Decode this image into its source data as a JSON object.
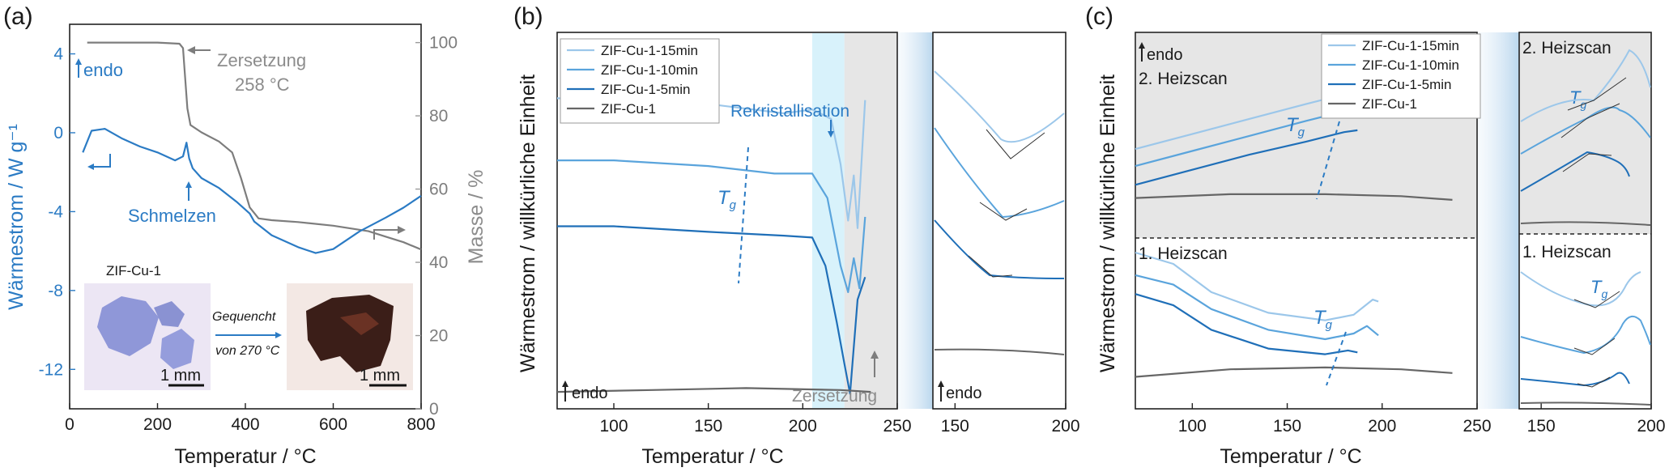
{
  "colors": {
    "dsc_blue": "#2b7bc4",
    "tga_grey": "#7d7d7d",
    "axis_grey": "#9a9a9a",
    "c15": "#9cc7ea",
    "c10": "#5aa4dc",
    "c5": "#1f6fb8",
    "c0": "#666666",
    "shade": "#e6e6e6",
    "cyan_band": "#d8f2fb"
  },
  "panel_a": {
    "label": "(a)",
    "xlabel": "Temperatur / °C",
    "ylabel_left": "Wärmestrom / W g⁻¹",
    "ylabel_right": "Masse / %",
    "x_ticks": [
      "0",
      "200",
      "400",
      "600",
      "800"
    ],
    "y_left_ticks": [
      "4",
      "0",
      "-4",
      "-8",
      "-12"
    ],
    "y_right_ticks": [
      "100",
      "80",
      "60",
      "40",
      "20",
      "0"
    ],
    "annotations": {
      "endo": "endo",
      "zersetzung": "Zersetzung",
      "zersetzung_temp": "258 °C",
      "schmelzen": "Schmelzen",
      "sample": "ZIF-Cu-1",
      "gequencht": "Gequencht",
      "von": "von 270 °C",
      "scale1": "1 mm",
      "scale2": "1 mm"
    }
  },
  "panel_b": {
    "label": "(b)",
    "xlabel": "Temperatur / °C",
    "ylabel": "Wärmestrom / willkürliche Einheit",
    "x_ticks": [
      "100",
      "150",
      "200",
      "250"
    ],
    "zoom_x_ticks": [
      "150",
      "200"
    ],
    "legend": [
      "ZIF-Cu-1-15min",
      "ZIF-Cu-1-10min",
      "ZIF-Cu-1-5min",
      "ZIF-Cu-1"
    ],
    "annotations": {
      "rekristallisation": "Rekristallisation",
      "tg": "T",
      "tg_sub": "g",
      "endo": "endo",
      "zersetzung": "Zersetzung",
      "zoom_endo": "endo"
    }
  },
  "panel_c": {
    "label": "(c)",
    "xlabel": "Temperatur / °C",
    "ylabel": "Wärmestrom / willkürliche Einheit",
    "x_ticks": [
      "100",
      "150",
      "200",
      "250"
    ],
    "zoom_x_ticks": [
      "150",
      "200"
    ],
    "legend": [
      "ZIF-Cu-1-15min",
      "ZIF-Cu-1-10min",
      "ZIF-Cu-1-5min",
      "ZIF-Cu-1"
    ],
    "annotations": {
      "endo": "endo",
      "heizscan2": "2. Heizscan",
      "heizscan1": "1. Heizscan",
      "tg": "T",
      "tg_sub": "g",
      "zoom_heizscan2": "2. Heizscan",
      "zoom_heizscan1": "1. Heizscan"
    }
  },
  "chart_data": [
    {
      "type": "line",
      "panel": "a",
      "xlabel": "Temperatur / °C",
      "ylabel": "Wärmestrom / W g⁻¹",
      "xlim": [
        0,
        800
      ],
      "ylim": [
        -14,
        5.5
      ],
      "ylim_right": [
        0,
        105
      ],
      "series": [
        {
          "axis": "left",
          "x": [
            30,
            50,
            80,
            120,
            160,
            200,
            240,
            258,
            266,
            272,
            280,
            300,
            340,
            380,
            410,
            420,
            460,
            520,
            560,
            600,
            660,
            720,
            760,
            800
          ],
          "y": [
            -1.0,
            0.1,
            0.2,
            -0.3,
            -0.7,
            -1.0,
            -1.4,
            -1.2,
            -0.5,
            -1.3,
            -1.8,
            -2.3,
            -2.8,
            -3.5,
            -4.1,
            -4.5,
            -5.2,
            -5.8,
            -6.1,
            -5.9,
            -5.0,
            -4.3,
            -3.8,
            -3.2
          ]
        },
        {
          "axis": "right",
          "x": [
            40,
            100,
            200,
            250,
            258,
            262,
            268,
            275,
            300,
            340,
            370,
            390,
            410,
            430,
            460,
            520,
            600,
            680,
            720,
            760,
            800
          ],
          "y": [
            100,
            100,
            100,
            99.7,
            98.5,
            92,
            82,
            77.5,
            75.5,
            73,
            70,
            63,
            55,
            52,
            51.5,
            51,
            50,
            48.5,
            47,
            45.5,
            43.5
          ]
        }
      ]
    },
    {
      "type": "line",
      "panel": "b",
      "xlabel": "Temperatur / °C",
      "ylabel": "Wärmestrom / willkürliche Einheit",
      "xlim": [
        70,
        250
      ],
      "ylim": [
        0,
        10
      ],
      "series": [
        {
          "name": "ZIF-Cu-1-15min",
          "x": [
            70,
            100,
            150,
            190,
            205,
            215,
            220,
            224,
            227,
            229,
            231,
            233
          ],
          "y": [
            8.25,
            8.2,
            8.1,
            7.85,
            7.95,
            7.7,
            6.5,
            5.0,
            6.2,
            4.8,
            6.5,
            8.2
          ]
        },
        {
          "name": "ZIF-Cu-1-10min",
          "x": [
            70,
            100,
            150,
            185,
            205,
            213,
            220,
            224,
            227,
            230,
            233
          ],
          "y": [
            6.6,
            6.6,
            6.45,
            6.25,
            6.25,
            5.6,
            3.8,
            3.1,
            4.0,
            3.2,
            5.1
          ]
        },
        {
          "name": "ZIF-Cu-1-5min",
          "x": [
            70,
            100,
            150,
            190,
            205,
            212,
            218,
            222,
            225,
            229,
            233
          ],
          "y": [
            4.85,
            4.85,
            4.7,
            4.6,
            4.55,
            3.8,
            2.3,
            1.2,
            0.4,
            2.9,
            3.5
          ]
        },
        {
          "name": "ZIF-Cu-1",
          "x": [
            70,
            120,
            170,
            220,
            236
          ],
          "y": [
            0.45,
            0.5,
            0.55,
            0.5,
            0.45
          ]
        }
      ]
    },
    {
      "type": "line",
      "panel": "c",
      "xlabel": "Temperatur / °C",
      "ylabel": "Wärmestrom / willkürliche Einheit",
      "xlim": [
        70,
        250
      ],
      "ylim": [
        0,
        10
      ],
      "series": [
        {
          "name": "ZIF-Cu-1-15min",
          "x": [
            70,
            100,
            130,
            160,
            180,
            190,
            198
          ],
          "y": [
            6.9,
            7.3,
            7.7,
            8.1,
            8.35,
            8.55,
            8.45
          ]
        },
        {
          "name": "ZIF-Cu-1-10min",
          "x": [
            70,
            100,
            130,
            160,
            180,
            190,
            198
          ],
          "y": [
            6.45,
            6.85,
            7.25,
            7.65,
            7.9,
            8.05,
            7.85
          ]
        },
        {
          "name": "ZIF-Cu-1-5min",
          "x": [
            70,
            100,
            130,
            160,
            180,
            187
          ],
          "y": [
            5.95,
            6.35,
            6.75,
            7.1,
            7.35,
            7.4
          ]
        },
        {
          "name": "ZIF-Cu-1",
          "x": [
            70,
            120,
            170,
            210,
            237
          ],
          "y": [
            5.6,
            5.7,
            5.7,
            5.65,
            5.55
          ]
        },
        {
          "name": "ZIF-Cu-1-15min (1. Heizscan)",
          "x": [
            70,
            90,
            110,
            140,
            170,
            185,
            195,
            198
          ],
          "y": [
            4.15,
            3.85,
            3.1,
            2.55,
            2.35,
            2.5,
            2.9,
            2.85
          ]
        },
        {
          "name": "ZIF-Cu-1-10min (1. Heizscan)",
          "x": [
            70,
            90,
            110,
            140,
            170,
            185,
            192,
            198
          ],
          "y": [
            3.55,
            3.3,
            2.65,
            2.1,
            1.85,
            2.0,
            2.2,
            1.95
          ]
        },
        {
          "name": "ZIF-Cu-1-5min (1. Heizscan)",
          "x": [
            70,
            90,
            110,
            140,
            170,
            182,
            187
          ],
          "y": [
            3.05,
            2.75,
            2.1,
            1.6,
            1.45,
            1.55,
            1.5
          ]
        },
        {
          "name": "ZIF-Cu-1 (1. Heizscan)",
          "x": [
            70,
            120,
            170,
            210,
            237
          ],
          "y": [
            0.85,
            1.05,
            1.1,
            1.05,
            0.95
          ]
        }
      ]
    }
  ]
}
